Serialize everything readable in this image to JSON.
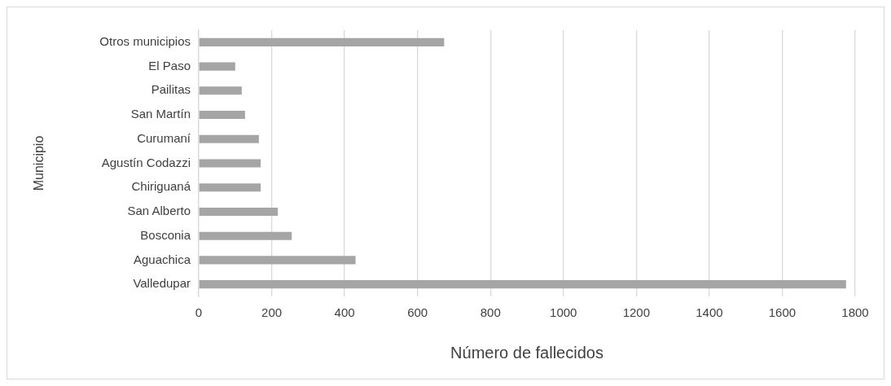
{
  "chart_data": {
    "type": "bar",
    "orientation": "horizontal",
    "xlabel": "Número de fallecidos",
    "ylabel": "Municipio",
    "categories": [
      "Otros municipios",
      "El Paso",
      "Pailitas",
      "San Martín",
      "Curumaní",
      "Agustín Codazzi",
      "Chiriguaná",
      "San Alberto",
      "Bosconia",
      "Aguachica",
      "Valledupar"
    ],
    "values": [
      673,
      100,
      118,
      127,
      165,
      170,
      170,
      217,
      255,
      430,
      1775
    ],
    "color": "#a5a5a5",
    "xlim": [
      0,
      1800
    ],
    "xticks": [
      0,
      200,
      400,
      600,
      800,
      1000,
      1200,
      1400,
      1600,
      1800
    ],
    "grid": "x"
  }
}
